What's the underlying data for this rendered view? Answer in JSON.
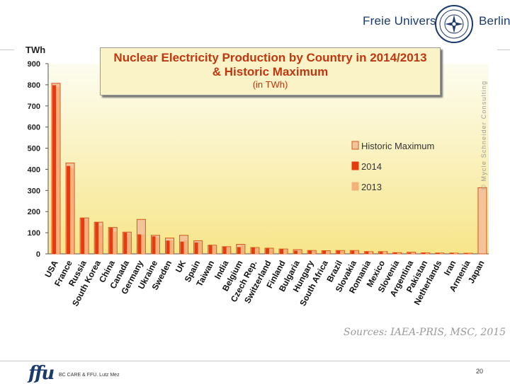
{
  "header": {
    "university": "Freie Universität",
    "city": "Berlin",
    "logo_name": "freie-universitaet-seal"
  },
  "chart_data": {
    "type": "bar",
    "title": "Nuclear Electricity Production by Country in 2014/2013",
    "title_line2": "& Historic Maximum",
    "subtitle": "(in TWh)",
    "ylabel": "TWh",
    "xlabel": "",
    "ylim": [
      0,
      900
    ],
    "yticks": [
      0,
      100,
      200,
      300,
      400,
      500,
      600,
      700,
      800,
      900
    ],
    "grid": false,
    "legend_position": "right",
    "categories": [
      "USA",
      "France",
      "Russia",
      "South Korea",
      "China",
      "Canada",
      "Germany",
      "Ukraine",
      "Sweden",
      "UK",
      "Spain",
      "Taiwan",
      "India",
      "Belgium",
      "Czech Rep.",
      "Switzerland",
      "Finland",
      "Bulgaria",
      "Hungary",
      "South Africa",
      "Brazil",
      "Slovakia",
      "Romania",
      "Mexico",
      "Slovenia",
      "Argentina",
      "Pakistan",
      "Netherlands",
      "Iran",
      "Armenia",
      "Japan"
    ],
    "series": [
      {
        "name": "Historic Maximum",
        "color": "#f3c39a",
        "edge": "#d8571a",
        "values": [
          807,
          430,
          170,
          150,
          125,
          103,
          163,
          88,
          75,
          88,
          62,
          41,
          34,
          45,
          30,
          27,
          23,
          20,
          16,
          15,
          16,
          16,
          11,
          11,
          6,
          8,
          5,
          4,
          4,
          3,
          313
        ]
      },
      {
        "name": "2014",
        "color": "#e63a0f",
        "edge": "#e63a0f",
        "values": [
          798,
          416,
          169,
          149,
          123,
          101,
          92,
          83,
          63,
          58,
          54,
          41,
          34,
          32,
          29,
          26,
          22,
          15,
          15,
          15,
          15,
          15,
          11,
          9,
          6,
          5,
          5,
          4,
          4,
          2,
          0
        ]
      },
      {
        "name": "2013",
        "color": "#f4b17a",
        "edge": "#f4b17a",
        "values": [
          790,
          405,
          162,
          133,
          105,
          95,
          92,
          78,
          64,
          64,
          54,
          40,
          32,
          41,
          29,
          25,
          22,
          14,
          15,
          13,
          14,
          15,
          11,
          11,
          5,
          6,
          4,
          3,
          4,
          2,
          0
        ]
      }
    ],
    "credit": "© Mycle Schneider Consulting",
    "source": "Sources: IAEA-PRIS, MSC, 2015"
  },
  "colors": {
    "plot_top": "#fdfdf0",
    "plot_bottom": "#f7e58a",
    "title_text": "#c2360f",
    "brand_blue": "#1a3a6e"
  },
  "footer": {
    "logo_text": "ffu",
    "text": "BC CARE & FFU. Lutz Mez",
    "page": "20"
  }
}
